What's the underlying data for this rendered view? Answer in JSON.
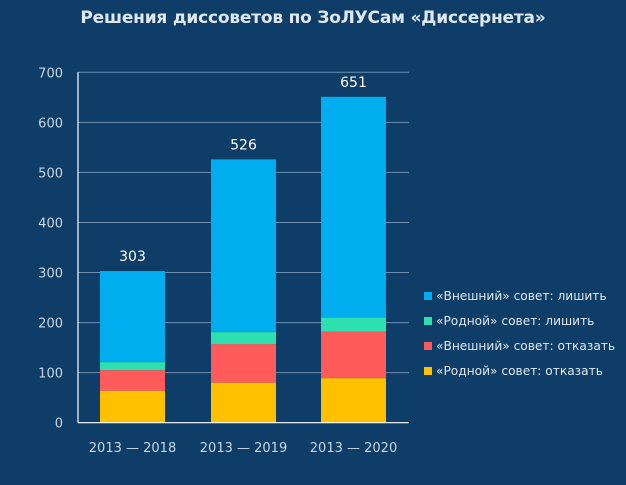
{
  "chart_data": {
    "type": "bar",
    "stacked": true,
    "title": "Решения диссоветов по ЗоЛУСам «Диссернета»",
    "xlabel": "",
    "ylabel": "",
    "categories": [
      "2013 — 2018",
      "2013 — 2019",
      "2013 — 2020"
    ],
    "ylim": [
      0,
      700
    ],
    "yticks": [
      0,
      100,
      200,
      300,
      400,
      500,
      600,
      700
    ],
    "grid": true,
    "legend_position": "right",
    "series": [
      {
        "name": "«Родной» совет: отказать",
        "color": "#ffc000",
        "values": [
          64,
          80,
          89
        ]
      },
      {
        "name": "«Внешний» совет: отказать",
        "color": "#ff5b5b",
        "values": [
          41,
          77,
          93
        ]
      },
      {
        "name": "«Родной» совет: лишить",
        "color": "#2ee0b0",
        "values": [
          16,
          24,
          28
        ]
      },
      {
        "name": "«Внешний» совет: лишить",
        "color": "#00aeef",
        "values": [
          182,
          345,
          441
        ]
      }
    ],
    "totals": [
      "303",
      "526",
      "651"
    ]
  },
  "legend_order": [
    3,
    2,
    1,
    0
  ],
  "colors": {
    "background": "#0e3d68",
    "text": "#dfe8f1",
    "axis_text": "#c9d6e3",
    "grid": "#6f8fb0",
    "axis": "#ffffff"
  }
}
